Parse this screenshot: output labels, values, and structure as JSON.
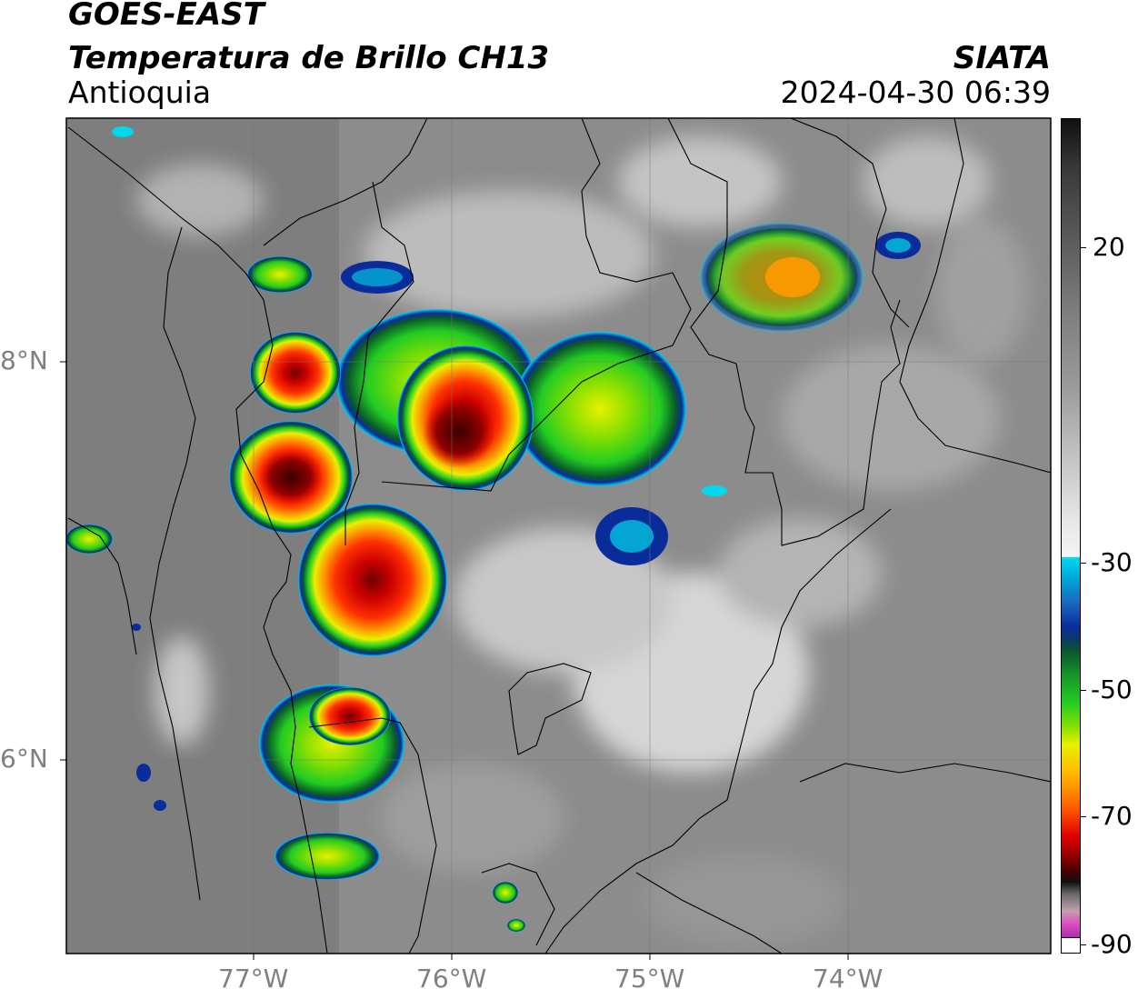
{
  "header": {
    "satellite": "GOES-EAST",
    "product": "Temperatura de Brillo CH13",
    "region": "Antioquia",
    "agency": "SIATA",
    "datetime": "2024-04-30 06:39"
  },
  "map": {
    "lat_labels": [
      "8°N",
      "6°N"
    ],
    "lon_labels": [
      "77°W",
      "76°W",
      "75°W",
      "74°W"
    ]
  },
  "colorbar": {
    "ticks": [
      "20",
      "-30",
      "-50",
      "-70",
      "-90"
    ],
    "colors": {
      "black": "#000000",
      "dark_gray": "#4a4a4a",
      "light_gray": "#f4f4f4",
      "cyan": "#00d8ee",
      "blue": "#0a2c9a",
      "dark_green": "#0a5a2a",
      "green": "#22cc22",
      "yellow": "#e8f000",
      "orange": "#ff9a00",
      "red": "#e00000",
      "dark_red": "#700000",
      "magenta": "#e050c0",
      "purple": "#8a10a0"
    }
  }
}
